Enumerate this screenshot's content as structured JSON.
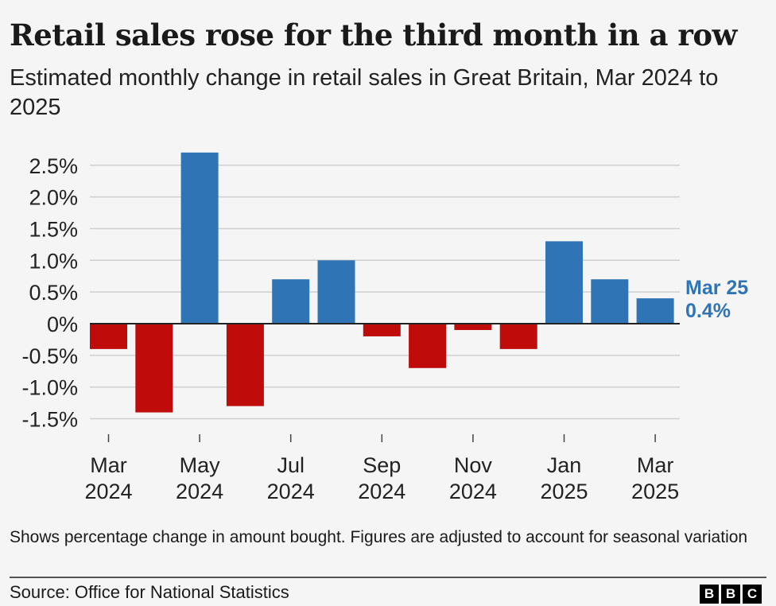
{
  "chart_data": {
    "type": "bar",
    "title": "Retail sales rose for the third month in a row",
    "subtitle": "Estimated monthly change in retail sales in Great Britain, Mar 2024 to 2025",
    "categories": [
      "Mar 2024",
      "Apr 2024",
      "May 2024",
      "Jun 2024",
      "Jul 2024",
      "Aug 2024",
      "Sep 2024",
      "Oct 2024",
      "Nov 2024",
      "Dec 2024",
      "Jan 2025",
      "Feb 2025",
      "Mar 2025"
    ],
    "values": [
      -0.4,
      -1.4,
      2.7,
      -1.3,
      0.7,
      1.0,
      -0.2,
      -0.7,
      -0.1,
      -0.4,
      1.3,
      0.7,
      0.4
    ],
    "ylim": [
      -1.5,
      2.5
    ],
    "yticks": [
      2.5,
      2.0,
      1.5,
      1.0,
      0.5,
      0,
      -0.5,
      -1.0,
      -1.5
    ],
    "ytick_labels": [
      "2.5%",
      "2.0%",
      "1.5%",
      "1.0%",
      "0.5%",
      "0%",
      "-0.5%",
      "-1.0%",
      "-1.5%"
    ],
    "xtick_labels": [
      {
        "index": 0,
        "line1": "Mar",
        "line2": "2024"
      },
      {
        "index": 2,
        "line1": "May",
        "line2": "2024"
      },
      {
        "index": 4,
        "line1": "Jul",
        "line2": "2024"
      },
      {
        "index": 6,
        "line1": "Sep",
        "line2": "2024"
      },
      {
        "index": 8,
        "line1": "Nov",
        "line2": "2024"
      },
      {
        "index": 10,
        "line1": "Jan",
        "line2": "2025"
      },
      {
        "index": 12,
        "line1": "Mar",
        "line2": "2025"
      }
    ],
    "annotation": {
      "line1": "Mar 25",
      "line2": "0.4%"
    },
    "grid": true,
    "colors": {
      "positive": "#2f74b5",
      "negative": "#c00b0b",
      "annotation": "#2f74b5"
    }
  },
  "footer": {
    "note": "Shows percentage change in amount bought. Figures are adjusted to account for seasonal variation",
    "source": "Source: Office for National Statistics",
    "logo": [
      "B",
      "B",
      "C"
    ]
  }
}
